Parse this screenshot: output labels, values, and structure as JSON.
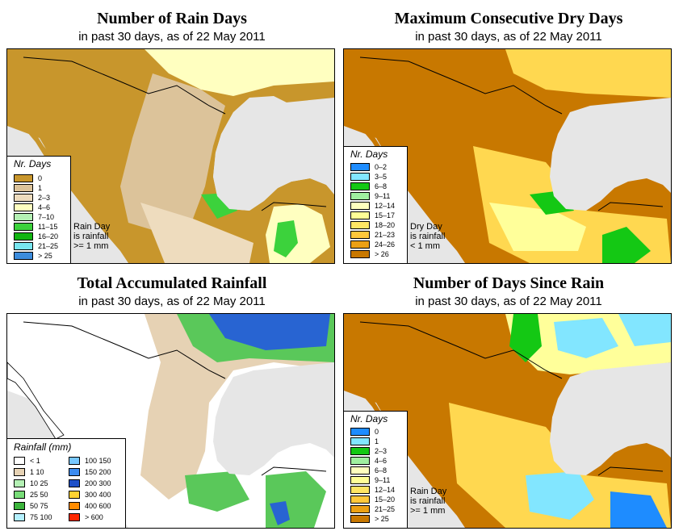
{
  "colors": {
    "ocean": "#e6e6e6",
    "rd_0": "#c8962c",
    "rd_1": "#dcc39a",
    "rd_23": "#eedcbe",
    "rd_46": "#ffffc0",
    "rd_710": "#b4f0b4",
    "rd_1115": "#3cd23c",
    "rd_1620": "#12b512",
    "rd_2125": "#78e6f0",
    "rd_25": "#3c8cdc",
    "dry_orange": "#c87800",
    "dry_yellow": "#ffd850",
    "dry_pale": "#ffff9a",
    "dry_green": "#14c814",
    "rain_white": "#ffffff",
    "rain_tan": "#e6d2b4",
    "rain_green": "#5ac85a",
    "rain_blue": "#2864d2"
  },
  "panels": [
    {
      "id": "rain_days",
      "title": "Number of Rain Days",
      "subtitle": "in past 30 days, as of  22 May 2011",
      "legend": {
        "title": "Nr. Days",
        "items": [
          {
            "label": "0",
            "color": "#c8962c"
          },
          {
            "label": "1",
            "color": "#dcc39a"
          },
          {
            "label": "2–3",
            "color": "#eedcbe"
          },
          {
            "label": "4–6",
            "color": "#ffffc0"
          },
          {
            "label": "7–10",
            "color": "#b4f0b4"
          },
          {
            "label": "11–15",
            "color": "#3cd23c"
          },
          {
            "label": "16–20",
            "color": "#12b512"
          },
          {
            "label": "21–25",
            "color": "#78e6f0"
          },
          {
            "label": "> 25",
            "color": "#3c8cdc"
          }
        ]
      },
      "note": [
        "Rain Day",
        "is rainfall",
        ">= 1 mm"
      ]
    },
    {
      "id": "dry_days",
      "title": "Maximum Consecutive Dry Days",
      "subtitle": "in past 30 days, as of  22 May 2011",
      "legend": {
        "title": "Nr. Days",
        "items": [
          {
            "label": "0–2",
            "color": "#1e8cff"
          },
          {
            "label": "3–5",
            "color": "#82e6ff"
          },
          {
            "label": "6–8",
            "color": "#14c814"
          },
          {
            "label": "9–11",
            "color": "#a0f0a0"
          },
          {
            "label": "12–14",
            "color": "#ffffbe"
          },
          {
            "label": "15–17",
            "color": "#ffff96"
          },
          {
            "label": "18–20",
            "color": "#ffe664"
          },
          {
            "label": "21–23",
            "color": "#ffc83c"
          },
          {
            "label": "24–26",
            "color": "#eba014"
          },
          {
            "label": "> 26",
            "color": "#c87800"
          }
        ]
      },
      "note": [
        "Dry Day",
        "is rainfall",
        "< 1 mm"
      ]
    },
    {
      "id": "accum_rain",
      "title": "Total Accumulated Rainfall",
      "subtitle": "in past 30 days, as of  22 May 2011",
      "legend": {
        "title": "Rainfall (mm)",
        "items_left": [
          {
            "label": "< 1",
            "color": "#ffffff"
          },
          {
            "label": "1    10",
            "color": "#e6d2b4"
          },
          {
            "label": "10    25",
            "color": "#b4f0b4"
          },
          {
            "label": "25    50",
            "color": "#78dc78"
          },
          {
            "label": "50    75",
            "color": "#3cb43c"
          },
          {
            "label": "75   100",
            "color": "#b4f0ff"
          }
        ],
        "items_right": [
          {
            "label": "100   150",
            "color": "#78c8ff"
          },
          {
            "label": "150   200",
            "color": "#3c8cf0"
          },
          {
            "label": "200   300",
            "color": "#1e50c8"
          },
          {
            "label": "300   400",
            "color": "#ffd232"
          },
          {
            "label": "400   600",
            "color": "#ff8c00"
          },
          {
            "label": "> 600",
            "color": "#ff2800"
          }
        ]
      },
      "note": []
    },
    {
      "id": "since_rain",
      "title": "Number of Days Since Rain",
      "subtitle": "in past 30 days, as of  22 May 2011",
      "legend": {
        "title": "Nr. Days",
        "items": [
          {
            "label": "0",
            "color": "#1e8cff"
          },
          {
            "label": "1",
            "color": "#82e6ff"
          },
          {
            "label": "2–3",
            "color": "#14c814"
          },
          {
            "label": "4–6",
            "color": "#a0f0a0"
          },
          {
            "label": "6–8",
            "color": "#ffffbe"
          },
          {
            "label": "9–11",
            "color": "#ffff96"
          },
          {
            "label": "12–14",
            "color": "#ffe664"
          },
          {
            "label": "15–20",
            "color": "#ffc83c"
          },
          {
            "label": "21–25",
            "color": "#eba014"
          },
          {
            "label": "> 25",
            "color": "#c87800"
          }
        ]
      },
      "note": [
        "Rain Day",
        "is rainfall",
        ">= 1 mm"
      ]
    }
  ]
}
